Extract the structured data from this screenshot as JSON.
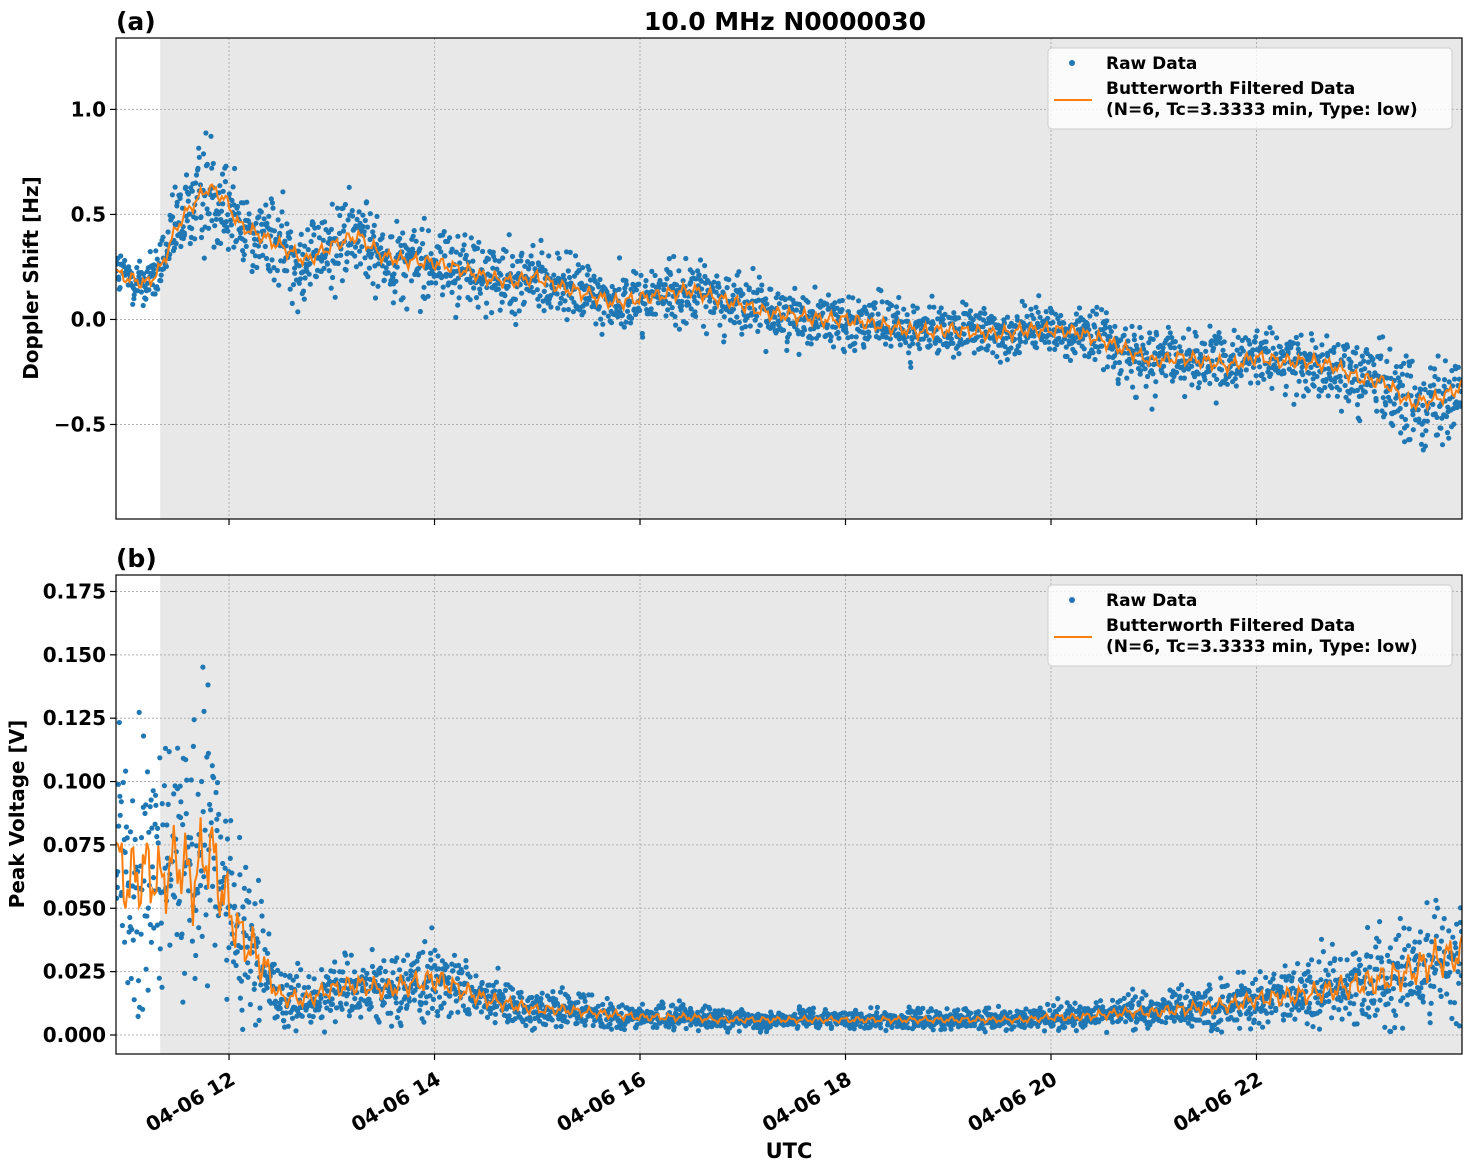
{
  "figure": {
    "title": "10.0 MHz N0000030",
    "xlabel": "UTC",
    "x_tick_labels": [
      "04-06 12",
      "04-06 14",
      "04-06 16",
      "04-06 18",
      "04-06 20",
      "04-06 22"
    ],
    "x_tick_hours": [
      12,
      14,
      16,
      18,
      20,
      22
    ],
    "colors": {
      "raw": "#1f77b4",
      "filtered": "#ff7f0e",
      "night_shade": "#e8e8e8"
    }
  },
  "chart_data": [
    {
      "type": "scatter",
      "panel_label": "(a)",
      "ylabel": "Doppler Shift [Hz]",
      "xlim_hours": [
        10.9,
        24.0
      ],
      "shade_start_hour": 11.33,
      "ylim": [
        -0.95,
        1.34
      ],
      "yticks": [
        1.0,
        0.5,
        0.0,
        -0.5
      ],
      "ytick_labels": [
        "1.0",
        "0.5",
        "0.0",
        "−0.5"
      ],
      "grid": true,
      "legend_position": "top-right",
      "legend": {
        "raw": "Raw Data",
        "filtered_line1": "Butterworth Filtered Data",
        "filtered_line2": "(N=6, Tc=3.3333 min, Type: low)"
      },
      "series": [
        {
          "name": "Raw Data",
          "style": "points",
          "x": [
            10.9,
            11.0,
            11.2,
            11.33,
            11.5,
            11.65,
            11.8,
            11.95,
            12.1,
            12.3,
            12.5,
            12.75,
            13.0,
            13.25,
            13.5,
            13.75,
            14.0,
            14.25,
            14.5,
            14.75,
            15.0,
            15.25,
            15.5,
            15.75,
            16.0,
            16.25,
            16.5,
            16.75,
            17.0,
            17.25,
            17.5,
            17.75,
            18.0,
            18.25,
            18.5,
            18.75,
            19.0,
            19.25,
            19.5,
            19.75,
            20.0,
            20.25,
            20.5,
            20.75,
            21.0,
            21.25,
            21.5,
            21.75,
            22.0,
            22.25,
            22.5,
            22.75,
            23.0,
            23.25,
            23.5,
            23.75,
            24.0
          ],
          "y": [
            0.22,
            0.2,
            0.17,
            0.24,
            0.45,
            0.55,
            0.63,
            0.58,
            0.45,
            0.4,
            0.35,
            0.28,
            0.35,
            0.4,
            0.3,
            0.28,
            0.27,
            0.24,
            0.2,
            0.18,
            0.2,
            0.15,
            0.12,
            0.08,
            0.1,
            0.12,
            0.14,
            0.1,
            0.07,
            0.03,
            0.02,
            0.0,
            0.0,
            -0.02,
            -0.04,
            -0.06,
            -0.05,
            -0.06,
            -0.07,
            -0.05,
            -0.05,
            -0.06,
            -0.1,
            -0.15,
            -0.2,
            -0.18,
            -0.2,
            -0.22,
            -0.18,
            -0.2,
            -0.2,
            -0.22,
            -0.28,
            -0.3,
            -0.4,
            -0.38,
            -0.32
          ],
          "spread": [
            0.12,
            0.12,
            0.12,
            0.15,
            0.2,
            0.25,
            0.3,
            0.25,
            0.18,
            0.18,
            0.2,
            0.2,
            0.22,
            0.2,
            0.2,
            0.18,
            0.18,
            0.18,
            0.18,
            0.16,
            0.16,
            0.15,
            0.15,
            0.15,
            0.14,
            0.15,
            0.15,
            0.14,
            0.14,
            0.13,
            0.13,
            0.13,
            0.13,
            0.12,
            0.12,
            0.12,
            0.12,
            0.12,
            0.12,
            0.12,
            0.12,
            0.12,
            0.14,
            0.16,
            0.16,
            0.14,
            0.14,
            0.14,
            0.14,
            0.14,
            0.14,
            0.14,
            0.16,
            0.18,
            0.2,
            0.2,
            0.18
          ]
        },
        {
          "name": "Butterworth Filtered Data (N=6, Tc=3.3333 min, Type: low)",
          "style": "line",
          "x": [
            10.9,
            11.0,
            11.2,
            11.33,
            11.5,
            11.65,
            11.8,
            11.95,
            12.1,
            12.3,
            12.5,
            12.75,
            13.0,
            13.25,
            13.5,
            13.75,
            14.0,
            14.25,
            14.5,
            14.75,
            15.0,
            15.25,
            15.5,
            15.75,
            16.0,
            16.25,
            16.5,
            16.75,
            17.0,
            17.25,
            17.5,
            17.75,
            18.0,
            18.25,
            18.5,
            18.75,
            19.0,
            19.25,
            19.5,
            19.75,
            20.0,
            20.25,
            20.5,
            20.75,
            21.0,
            21.25,
            21.5,
            21.75,
            22.0,
            22.25,
            22.5,
            22.75,
            23.0,
            23.25,
            23.5,
            23.75,
            24.0
          ],
          "y": [
            0.22,
            0.2,
            0.17,
            0.24,
            0.45,
            0.55,
            0.63,
            0.58,
            0.45,
            0.4,
            0.35,
            0.28,
            0.35,
            0.4,
            0.3,
            0.28,
            0.27,
            0.24,
            0.2,
            0.18,
            0.2,
            0.15,
            0.12,
            0.08,
            0.1,
            0.12,
            0.14,
            0.1,
            0.07,
            0.03,
            0.02,
            0.0,
            0.0,
            -0.02,
            -0.04,
            -0.06,
            -0.05,
            -0.06,
            -0.07,
            -0.05,
            -0.05,
            -0.06,
            -0.1,
            -0.15,
            -0.2,
            -0.18,
            -0.2,
            -0.22,
            -0.18,
            -0.2,
            -0.2,
            -0.22,
            -0.28,
            -0.3,
            -0.4,
            -0.38,
            -0.32
          ]
        }
      ]
    },
    {
      "type": "scatter",
      "panel_label": "(b)",
      "ylabel": "Peak Voltage [V]",
      "xlim_hours": [
        10.9,
        24.0
      ],
      "shade_start_hour": 11.33,
      "ylim": [
        -0.0075,
        0.1815
      ],
      "yticks": [
        0.175,
        0.15,
        0.125,
        0.1,
        0.075,
        0.05,
        0.025,
        0.0
      ],
      "ytick_labels": [
        "0.175",
        "0.150",
        "0.125",
        "0.100",
        "0.075",
        "0.050",
        "0.025",
        "0.000"
      ],
      "grid": true,
      "legend_position": "top-right",
      "legend": {
        "raw": "Raw Data",
        "filtered_line1": "Butterworth Filtered Data",
        "filtered_line2": "(N=6, Tc=3.3333 min, Type: low)"
      },
      "series": [
        {
          "name": "Raw Data",
          "style": "points",
          "x": [
            10.9,
            11.0,
            11.2,
            11.33,
            11.5,
            11.65,
            11.8,
            11.95,
            12.1,
            12.3,
            12.5,
            12.75,
            13.0,
            13.25,
            13.5,
            13.75,
            14.0,
            14.25,
            14.5,
            14.75,
            15.0,
            15.25,
            15.5,
            15.75,
            16.0,
            16.25,
            16.5,
            16.75,
            17.0,
            17.25,
            17.5,
            17.75,
            18.0,
            18.25,
            18.5,
            18.75,
            19.0,
            19.25,
            19.5,
            19.75,
            20.0,
            20.25,
            20.5,
            20.75,
            21.0,
            21.25,
            21.5,
            21.75,
            22.0,
            22.25,
            22.5,
            22.75,
            23.0,
            23.25,
            23.5,
            23.75,
            24.0
          ],
          "y": [
            0.07,
            0.06,
            0.065,
            0.06,
            0.07,
            0.06,
            0.075,
            0.055,
            0.04,
            0.03,
            0.015,
            0.014,
            0.018,
            0.02,
            0.018,
            0.02,
            0.022,
            0.018,
            0.014,
            0.012,
            0.01,
            0.01,
            0.009,
            0.008,
            0.007,
            0.007,
            0.007,
            0.006,
            0.006,
            0.006,
            0.006,
            0.006,
            0.006,
            0.006,
            0.006,
            0.006,
            0.006,
            0.006,
            0.006,
            0.006,
            0.007,
            0.007,
            0.008,
            0.009,
            0.009,
            0.01,
            0.011,
            0.012,
            0.014,
            0.015,
            0.016,
            0.018,
            0.02,
            0.022,
            0.025,
            0.03,
            0.032
          ],
          "spread": [
            0.05,
            0.05,
            0.05,
            0.045,
            0.05,
            0.05,
            0.06,
            0.045,
            0.035,
            0.03,
            0.012,
            0.011,
            0.012,
            0.014,
            0.013,
            0.015,
            0.016,
            0.013,
            0.01,
            0.009,
            0.007,
            0.007,
            0.006,
            0.006,
            0.005,
            0.005,
            0.005,
            0.004,
            0.004,
            0.004,
            0.004,
            0.004,
            0.004,
            0.004,
            0.004,
            0.004,
            0.004,
            0.004,
            0.004,
            0.004,
            0.005,
            0.005,
            0.006,
            0.006,
            0.007,
            0.008,
            0.009,
            0.01,
            0.011,
            0.012,
            0.013,
            0.015,
            0.017,
            0.02,
            0.022,
            0.025,
            0.025
          ]
        },
        {
          "name": "Butterworth Filtered Data (N=6, Tc=3.3333 min, Type: low)",
          "style": "line",
          "x": [
            10.9,
            11.0,
            11.2,
            11.33,
            11.5,
            11.65,
            11.8,
            11.95,
            12.1,
            12.3,
            12.5,
            12.75,
            13.0,
            13.25,
            13.5,
            13.75,
            14.0,
            14.25,
            14.5,
            14.75,
            15.0,
            15.25,
            15.5,
            15.75,
            16.0,
            16.25,
            16.5,
            16.75,
            17.0,
            17.25,
            17.5,
            17.75,
            18.0,
            18.25,
            18.5,
            18.75,
            19.0,
            19.25,
            19.5,
            19.75,
            20.0,
            20.25,
            20.5,
            20.75,
            21.0,
            21.25,
            21.5,
            21.75,
            22.0,
            22.25,
            22.5,
            22.75,
            23.0,
            23.25,
            23.5,
            23.75,
            24.0
          ],
          "y": [
            0.07,
            0.06,
            0.065,
            0.06,
            0.07,
            0.06,
            0.075,
            0.055,
            0.04,
            0.03,
            0.015,
            0.014,
            0.018,
            0.02,
            0.018,
            0.02,
            0.022,
            0.018,
            0.014,
            0.012,
            0.01,
            0.01,
            0.009,
            0.008,
            0.007,
            0.007,
            0.007,
            0.006,
            0.006,
            0.006,
            0.006,
            0.006,
            0.006,
            0.006,
            0.006,
            0.006,
            0.006,
            0.006,
            0.006,
            0.006,
            0.007,
            0.007,
            0.008,
            0.009,
            0.009,
            0.01,
            0.011,
            0.012,
            0.014,
            0.015,
            0.016,
            0.018,
            0.02,
            0.022,
            0.025,
            0.03,
            0.032
          ]
        }
      ]
    }
  ]
}
